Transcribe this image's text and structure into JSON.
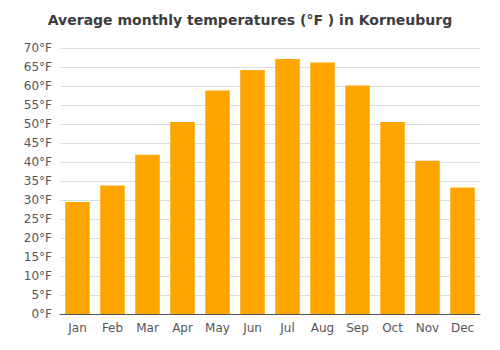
{
  "chart_data": {
    "type": "bar",
    "title": "Average monthly temperatures (°F ) in Korneuburg",
    "categories": [
      "Jan",
      "Feb",
      "Mar",
      "Apr",
      "May",
      "Jun",
      "Jul",
      "Aug",
      "Sep",
      "Oct",
      "Nov",
      "Dec"
    ],
    "values": [
      29.5,
      33.8,
      41.9,
      50.5,
      58.8,
      64.2,
      67.1,
      66.2,
      60.1,
      50.5,
      40.3,
      33.3
    ],
    "color": "#FFA500",
    "ylim": [
      0,
      70
    ],
    "yticks": [
      {
        "value": 0,
        "label": "0°F"
      },
      {
        "value": 5,
        "label": "5°F"
      },
      {
        "value": 10,
        "label": "10°F"
      },
      {
        "value": 15,
        "label": "15°F"
      },
      {
        "value": 20,
        "label": "20°F"
      },
      {
        "value": 25,
        "label": "25°F"
      },
      {
        "value": 30,
        "label": "30°F"
      },
      {
        "value": 35,
        "label": "35°F"
      },
      {
        "value": 40,
        "label": "40°F"
      },
      {
        "value": 45,
        "label": "45°F"
      },
      {
        "value": 50,
        "label": "50°F"
      },
      {
        "value": 55,
        "label": "55°F"
      },
      {
        "value": 60,
        "label": "60°F"
      },
      {
        "value": 65,
        "label": "65°F"
      },
      {
        "value": 70,
        "label": "70°F"
      }
    ],
    "grid": true
  }
}
